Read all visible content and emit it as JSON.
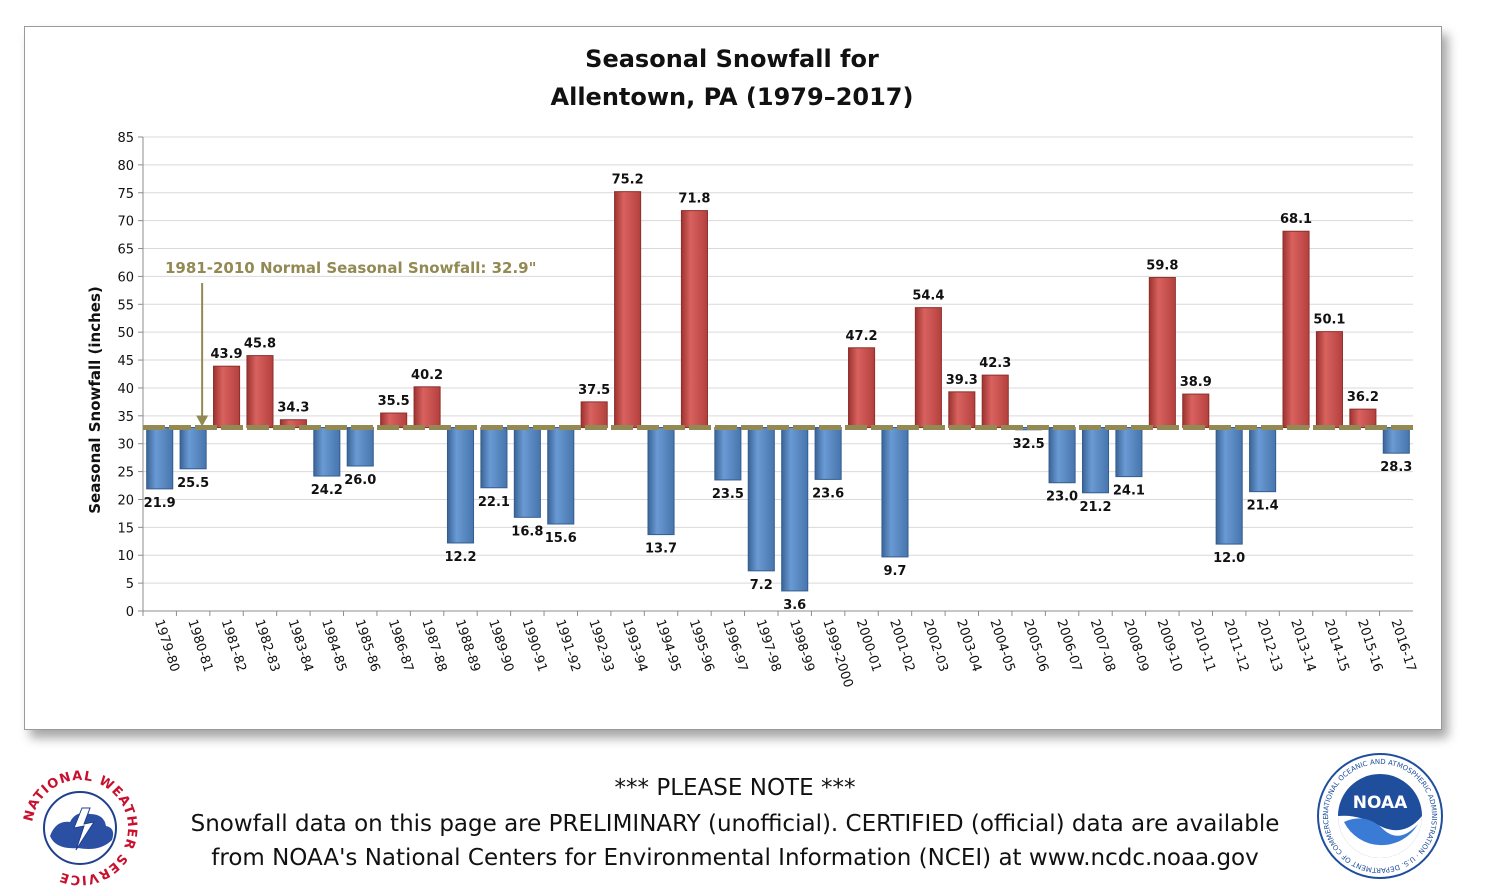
{
  "chart_data": {
    "type": "bar",
    "title_line1": "Seasonal Snowfall for",
    "title_line2": "Allentown, PA (1979–2017)",
    "ylabel": "Seasonal Snowfall (inches)",
    "xlabel": "",
    "ylim": [
      0,
      85
    ],
    "ytick_step": 5,
    "baseline": 32.9,
    "baseline_label": "1981-2010 Normal Seasonal Snowfall: 32.9\"",
    "categories": [
      "1979-80",
      "1980-81",
      "1981-82",
      "1982-83",
      "1983-84",
      "1984-85",
      "1985-86",
      "1986-87",
      "1987-88",
      "1988-89",
      "1989-90",
      "1990-91",
      "1991-92",
      "1992-93",
      "1993-94",
      "1994-95",
      "1995-96",
      "1996-97",
      "1997-98",
      "1998-99",
      "1999-2000",
      "2000-01",
      "2001-02",
      "2002-03",
      "2003-04",
      "2004-05",
      "2005-06",
      "2006-07",
      "2007-08",
      "2008-09",
      "2009-10",
      "2010-11",
      "2011-12",
      "2012-13",
      "2013-14",
      "2014-15",
      "2015-16",
      "2016-17"
    ],
    "values": [
      21.9,
      25.5,
      43.9,
      45.8,
      34.3,
      24.2,
      26.0,
      35.5,
      40.2,
      12.2,
      22.1,
      16.8,
      15.6,
      37.5,
      75.2,
      13.7,
      71.8,
      23.5,
      7.2,
      3.6,
      23.6,
      47.2,
      9.7,
      54.4,
      39.3,
      42.3,
      32.5,
      23.0,
      21.2,
      24.1,
      59.8,
      38.9,
      12.0,
      21.4,
      68.1,
      50.1,
      36.2,
      28.3
    ],
    "value_labels": [
      "21.9",
      "25.5",
      "43.9",
      "45.8",
      "34.3",
      "24.2",
      "26.0",
      "35.5",
      "40.2",
      "12.2",
      "22.1",
      "16.8",
      "15.6",
      "37.5",
      "75.2",
      "13.7",
      "71.8",
      "23.5",
      "7.2",
      "3.6",
      "23.6",
      "47.2",
      "9.7",
      "54.4",
      "39.3",
      "42.3",
      "32.5",
      "23.0",
      "21.2",
      "24.1",
      "59.8",
      "38.9",
      "12.0",
      "21.4",
      "68.1",
      "50.1",
      "36.2",
      "28.3"
    ],
    "colors": {
      "above": "#c0504d",
      "below": "#4f81bd",
      "baseline": "#938953",
      "grid": "#d9d9d9"
    },
    "grid": true
  },
  "note": {
    "heading": "*** PLEASE NOTE ***",
    "line1": "Snowfall data on this page are PRELIMINARY (unofficial). CERTIFIED (official) data are available",
    "line2": "from NOAA's National Centers for Environmental Information (NCEI) at www.ncdc.noaa.gov"
  },
  "logos": {
    "nws_text": "NATIONAL WEATHER SERVICE",
    "noaa_text": "NOAA",
    "noaa_ring_text": "NATIONAL OCEANIC AND ATMOSPHERIC ADMINISTRATION · U.S. DEPARTMENT OF COMMERCE"
  }
}
